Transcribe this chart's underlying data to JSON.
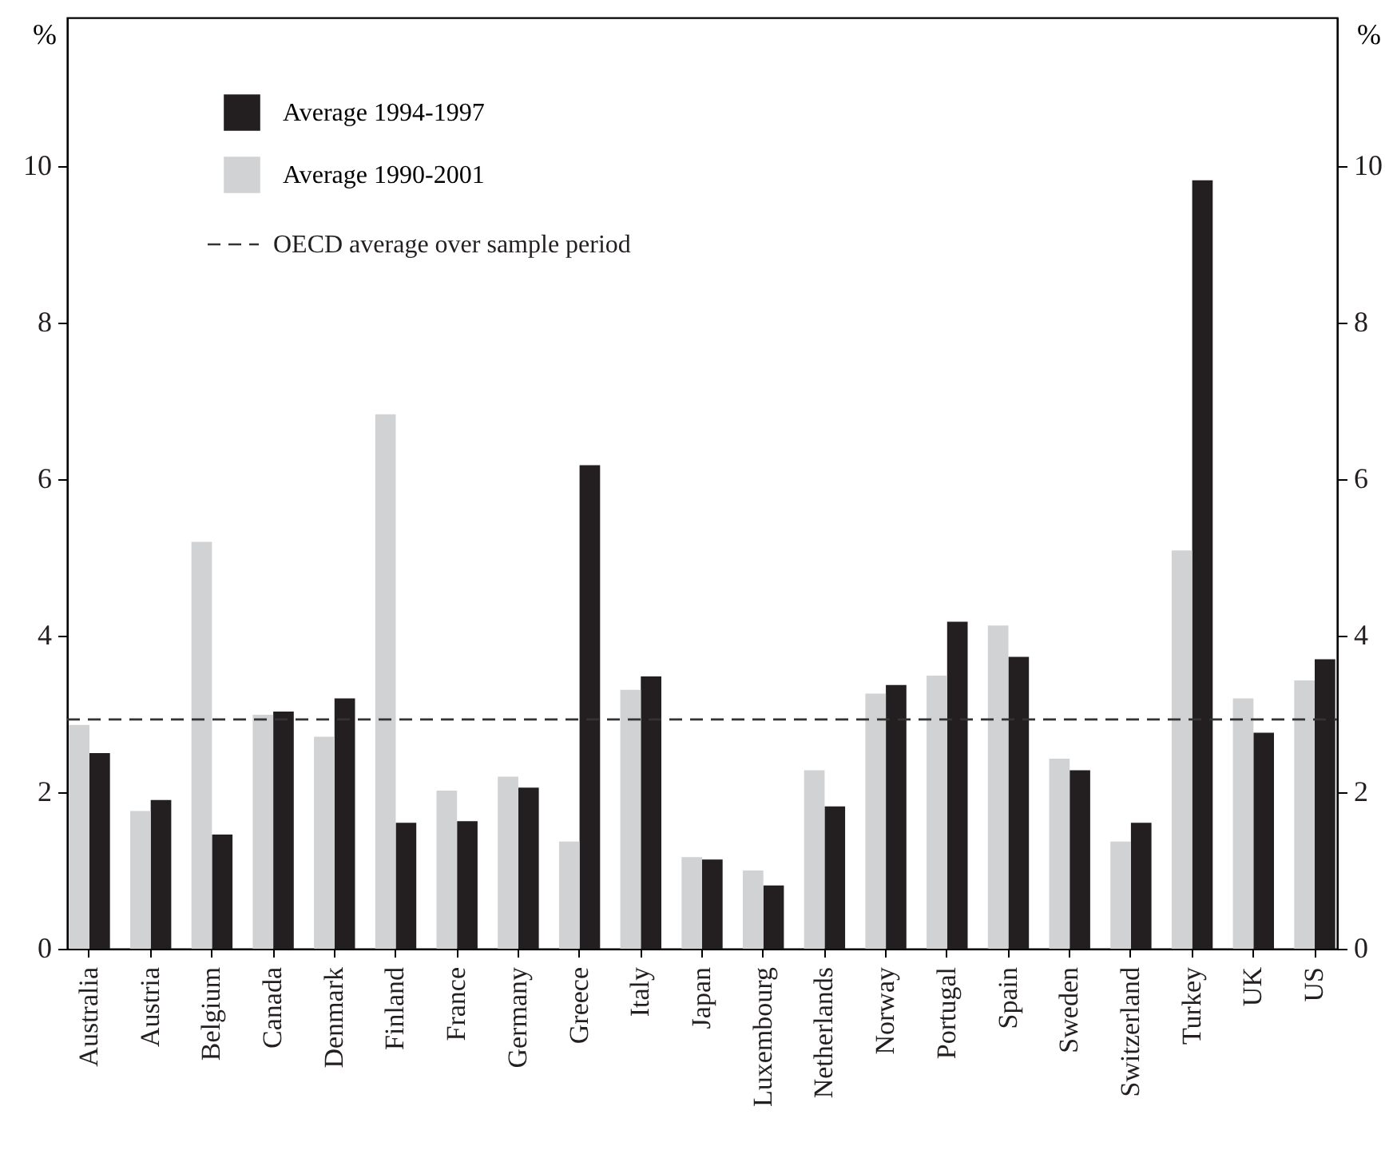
{
  "chart_data": {
    "type": "bar",
    "categories": [
      "Australia",
      "Austria",
      "Belgium",
      "Canada",
      "Denmark",
      "Finland",
      "France",
      "Germany",
      "Greece",
      "Italy",
      "Japan",
      "Luxembourg",
      "Netherlands",
      "Norway",
      "Portugal",
      "Spain",
      "Sweden",
      "Switzerland",
      "Turkey",
      "UK",
      "US"
    ],
    "series": [
      {
        "name": "Average 1994-1997",
        "color": "#231f20",
        "values": [
          2.5,
          1.9,
          1.46,
          3.03,
          3.2,
          1.61,
          1.63,
          2.06,
          6.18,
          3.48,
          1.14,
          0.81,
          1.82,
          3.37,
          4.18,
          3.73,
          2.28,
          1.61,
          9.82,
          2.76,
          3.7
        ]
      },
      {
        "name": "Average 1990-2001",
        "color": "#d1d2d4",
        "values": [
          2.86,
          1.76,
          5.2,
          2.99,
          2.71,
          6.83,
          2.02,
          2.2,
          1.37,
          3.31,
          1.17,
          1.0,
          2.28,
          3.26,
          3.49,
          4.13,
          2.43,
          1.37,
          5.09,
          3.2,
          3.43
        ]
      }
    ],
    "ylabel": "%",
    "y2label": "%",
    "ylim": [
      0,
      11.9
    ],
    "yticks": [
      0,
      2,
      4,
      6,
      8,
      10
    ],
    "y2lim": [
      0,
      11.9
    ],
    "y2ticks": [
      0,
      2,
      4,
      6,
      8,
      10
    ],
    "ref_lines": [
      {
        "axis": "y",
        "value": 2.93,
        "label": "OECD average over sample period",
        "line_style": "dashed",
        "color": "#333333"
      }
    ],
    "legend": "top left",
    "grid": false
  }
}
